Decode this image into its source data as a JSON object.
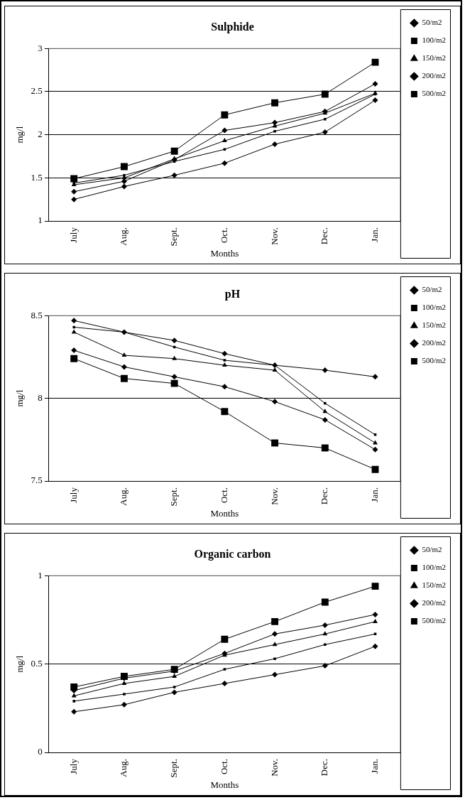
{
  "chart_data": [
    {
      "type": "line",
      "title": "Sulphide",
      "xlabel": "Months",
      "ylabel": "mg/l",
      "categories": [
        "July",
        "Aug.",
        "Sept.",
        "Oct.",
        "Nov.",
        "Dec.",
        "Jan."
      ],
      "ylim": [
        1,
        3
      ],
      "yticks": [
        1,
        1.5,
        2,
        2.5,
        3
      ],
      "grid": "y",
      "legend": "right",
      "series": [
        {
          "name": "50/m2",
          "color": "#000000",
          "marker": "diamond",
          "values": [
            1.25,
            1.4,
            1.53,
            1.67,
            1.89,
            2.03,
            2.4
          ]
        },
        {
          "name": "100/m2",
          "color": "#000000",
          "marker": "square",
          "values": [
            1.44,
            1.53,
            1.69,
            1.83,
            2.04,
            2.18,
            2.47
          ]
        },
        {
          "name": "150/m2",
          "color": "#000000",
          "marker": "triangle",
          "values": [
            1.42,
            1.5,
            1.72,
            1.93,
            2.1,
            2.25,
            2.48
          ]
        },
        {
          "name": "200/m2",
          "color": "#000000",
          "marker": "diamond",
          "values": [
            1.34,
            1.46,
            1.71,
            2.05,
            2.14,
            2.27,
            2.59
          ]
        },
        {
          "name": "500/m2",
          "color": "#000000",
          "marker": "square",
          "values": [
            1.49,
            1.63,
            1.81,
            2.23,
            2.37,
            2.47,
            2.84
          ]
        }
      ]
    },
    {
      "type": "line",
      "title": "pH",
      "xlabel": "Months",
      "ylabel": "mg/l",
      "categories": [
        "July",
        "Aug.",
        "Sept.",
        "Oct.",
        "Nov.",
        "Dec.",
        "Jan."
      ],
      "ylim": [
        7.5,
        8.5
      ],
      "yticks": [
        7.5,
        8,
        8.5
      ],
      "grid": "y",
      "legend": "right",
      "series": [
        {
          "name": "50/m2",
          "color": "#000000",
          "marker": "diamond",
          "values": [
            8.47,
            8.4,
            8.35,
            8.27,
            8.2,
            8.17,
            8.13
          ]
        },
        {
          "name": "100/m2",
          "color": "#000000",
          "marker": "square",
          "values": [
            8.43,
            8.4,
            8.31,
            8.23,
            8.2,
            7.97,
            7.78
          ]
        },
        {
          "name": "150/m2",
          "color": "#000000",
          "marker": "triangle",
          "values": [
            8.4,
            8.26,
            8.24,
            8.2,
            8.17,
            7.92,
            7.73
          ]
        },
        {
          "name": "200/m2",
          "color": "#000000",
          "marker": "diamond",
          "values": [
            8.29,
            8.19,
            8.13,
            8.07,
            7.98,
            7.87,
            7.69
          ]
        },
        {
          "name": "500/m2",
          "color": "#000000",
          "marker": "square",
          "values": [
            8.24,
            8.12,
            8.09,
            7.92,
            7.73,
            7.7,
            7.57
          ]
        }
      ]
    },
    {
      "type": "line",
      "title": "Organic carbon",
      "xlabel": "Months",
      "ylabel": "mg/l",
      "categories": [
        "July",
        "Aug.",
        "Sept.",
        "Oct.",
        "Nov.",
        "Dec.",
        "Jan."
      ],
      "ylim": [
        0,
        1
      ],
      "yticks": [
        0,
        0.5,
        1
      ],
      "grid": "y",
      "legend": "right",
      "series": [
        {
          "name": "50/m2",
          "color": "#000000",
          "marker": "diamond",
          "values": [
            0.23,
            0.27,
            0.34,
            0.39,
            0.44,
            0.49,
            0.6
          ]
        },
        {
          "name": "100/m2",
          "color": "#000000",
          "marker": "square",
          "values": [
            0.29,
            0.33,
            0.37,
            0.47,
            0.53,
            0.61,
            0.67
          ]
        },
        {
          "name": "150/m2",
          "color": "#000000",
          "marker": "triangle",
          "values": [
            0.32,
            0.39,
            0.43,
            0.55,
            0.61,
            0.67,
            0.74
          ]
        },
        {
          "name": "200/m2",
          "color": "#000000",
          "marker": "diamond",
          "values": [
            0.35,
            0.42,
            0.46,
            0.56,
            0.67,
            0.72,
            0.78
          ]
        },
        {
          "name": "500/m2",
          "color": "#000000",
          "marker": "square",
          "values": [
            0.37,
            0.43,
            0.47,
            0.64,
            0.74,
            0.85,
            0.94
          ]
        }
      ]
    }
  ]
}
